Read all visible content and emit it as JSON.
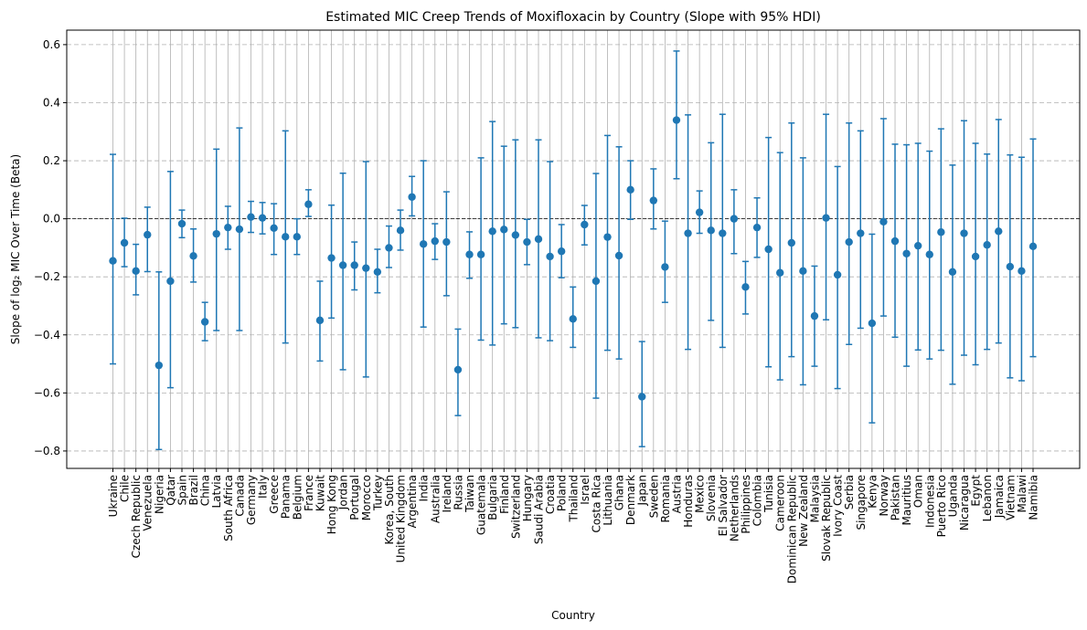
{
  "chart_data": {
    "type": "scatter",
    "title": "Estimated MIC Creep Trends of Moxifloxacin by Country (Slope with 95% HDI)",
    "xlabel": "Country",
    "ylabel": "Slope of log₂ MIC Over Time (Beta)",
    "ylim": [
      -0.86,
      0.65
    ],
    "yticks": [
      -0.8,
      -0.6,
      -0.4,
      -0.2,
      0.0,
      0.2,
      0.4,
      0.6
    ],
    "ytick_labels": [
      "−0.8",
      "−0.6",
      "−0.4",
      "−0.2",
      "0.0",
      "0.2",
      "0.4",
      "0.6"
    ],
    "grid": true,
    "reference_line": 0.0,
    "color": "#1f77b4",
    "categories": [
      "Ukraine",
      "Chile",
      "Czech Republic",
      "Venezuela",
      "Nigeria",
      "Qatar",
      "Spain",
      "Brazil",
      "China",
      "Latvia",
      "South Africa",
      "Canada",
      "Germany",
      "Italy",
      "Greece",
      "Panama",
      "Belgium",
      "France",
      "Kuwait",
      "Hong Kong",
      "Jordan",
      "Portugal",
      "Morocco",
      "Turkey",
      "Korea, South",
      "United Kingdom",
      "Argentina",
      "India",
      "Australia",
      "Ireland",
      "Russia",
      "Taiwan",
      "Guatemala",
      "Bulgaria",
      "Finland",
      "Switzerland",
      "Hungary",
      "Saudi Arabia",
      "Croatia",
      "Poland",
      "Thailand",
      "Israel",
      "Costa Rica",
      "Lithuania",
      "Ghana",
      "Denmark",
      "Japan",
      "Sweden",
      "Romania",
      "Austria",
      "Honduras",
      "Mexico",
      "Slovenia",
      "El Salvador",
      "Netherlands",
      "Philippines",
      "Colombia",
      "Tunisia",
      "Cameroon",
      "Dominican Republic",
      "New Zealand",
      "Malaysia",
      "Slovak Republic",
      "Ivory Coast",
      "Serbia",
      "Singapore",
      "Kenya",
      "Norway",
      "Pakistan",
      "Mauritius",
      "Oman",
      "Indonesia",
      "Puerto Rico",
      "Uganda",
      "Nicaragua",
      "Egypt",
      "Lebanon",
      "Jamaica",
      "Vietnam",
      "Malawi",
      "Namibia"
    ],
    "estimates": [
      -0.145,
      -0.083,
      -0.18,
      -0.055,
      -0.505,
      -0.215,
      -0.017,
      -0.128,
      -0.355,
      -0.052,
      -0.03,
      -0.036,
      0.006,
      0.003,
      -0.032,
      -0.062,
      -0.062,
      0.05,
      -0.35,
      -0.135,
      -0.16,
      -0.16,
      -0.17,
      -0.183,
      -0.1,
      -0.04,
      0.075,
      -0.087,
      -0.077,
      -0.08,
      -0.52,
      -0.123,
      -0.123,
      -0.043,
      -0.037,
      -0.056,
      -0.08,
      -0.07,
      -0.13,
      -0.112,
      -0.345,
      -0.02,
      -0.215,
      -0.063,
      -0.127,
      0.1,
      -0.613,
      0.063,
      -0.166,
      0.34,
      -0.05,
      0.022,
      -0.04,
      -0.05,
      0.0,
      -0.235,
      -0.03,
      -0.105,
      -0.186,
      -0.083,
      -0.18,
      -0.335,
      0.003,
      -0.193,
      -0.08,
      -0.05,
      -0.36,
      -0.01,
      -0.077,
      -0.12,
      -0.093,
      -0.123,
      -0.046,
      -0.183,
      -0.05,
      -0.13,
      -0.09,
      -0.043,
      -0.165,
      -0.18,
      -0.095
    ],
    "hdi_lower": [
      -0.5,
      -0.165,
      -0.262,
      -0.182,
      -0.795,
      -0.582,
      -0.065,
      -0.218,
      -0.42,
      -0.385,
      -0.105,
      -0.385,
      -0.047,
      -0.052,
      -0.123,
      -0.428,
      -0.123,
      0.008,
      -0.49,
      -0.342,
      -0.52,
      -0.245,
      -0.545,
      -0.255,
      -0.168,
      -0.108,
      0.01,
      -0.373,
      -0.14,
      -0.265,
      -0.678,
      -0.205,
      -0.418,
      -0.435,
      -0.362,
      -0.375,
      -0.158,
      -0.41,
      -0.42,
      -0.203,
      -0.443,
      -0.09,
      -0.618,
      -0.453,
      -0.483,
      -0.002,
      -0.785,
      -0.035,
      -0.288,
      0.138,
      -0.45,
      -0.05,
      -0.35,
      -0.443,
      -0.12,
      -0.328,
      -0.133,
      -0.51,
      -0.555,
      -0.475,
      -0.572,
      -0.508,
      -0.348,
      -0.585,
      -0.433,
      -0.377,
      -0.703,
      -0.335,
      -0.408,
      -0.508,
      -0.452,
      -0.483,
      -0.453,
      -0.57,
      -0.47,
      -0.503,
      -0.45,
      -0.428,
      -0.548,
      -0.558,
      -0.475
    ],
    "hdi_upper": [
      0.222,
      0.002,
      -0.088,
      0.04,
      -0.183,
      0.163,
      0.03,
      -0.035,
      -0.288,
      0.24,
      0.043,
      0.313,
      0.06,
      0.056,
      0.052,
      0.303,
      0.0,
      0.1,
      -0.215,
      0.047,
      0.157,
      -0.08,
      0.197,
      -0.105,
      -0.025,
      0.03,
      0.146,
      0.2,
      -0.017,
      0.093,
      -0.38,
      -0.045,
      0.21,
      0.335,
      0.25,
      0.272,
      -0.002,
      0.272,
      0.197,
      -0.02,
      -0.235,
      0.046,
      0.156,
      0.287,
      0.248,
      0.2,
      -0.423,
      0.172,
      -0.008,
      0.578,
      0.358,
      0.096,
      0.262,
      0.36,
      0.1,
      -0.147,
      0.072,
      0.28,
      0.228,
      0.33,
      0.21,
      -0.163,
      0.36,
      0.18,
      0.33,
      0.303,
      -0.053,
      0.345,
      0.257,
      0.255,
      0.26,
      0.233,
      0.31,
      0.185,
      0.338,
      0.26,
      0.223,
      0.342,
      0.22,
      0.212,
      0.275
    ]
  }
}
